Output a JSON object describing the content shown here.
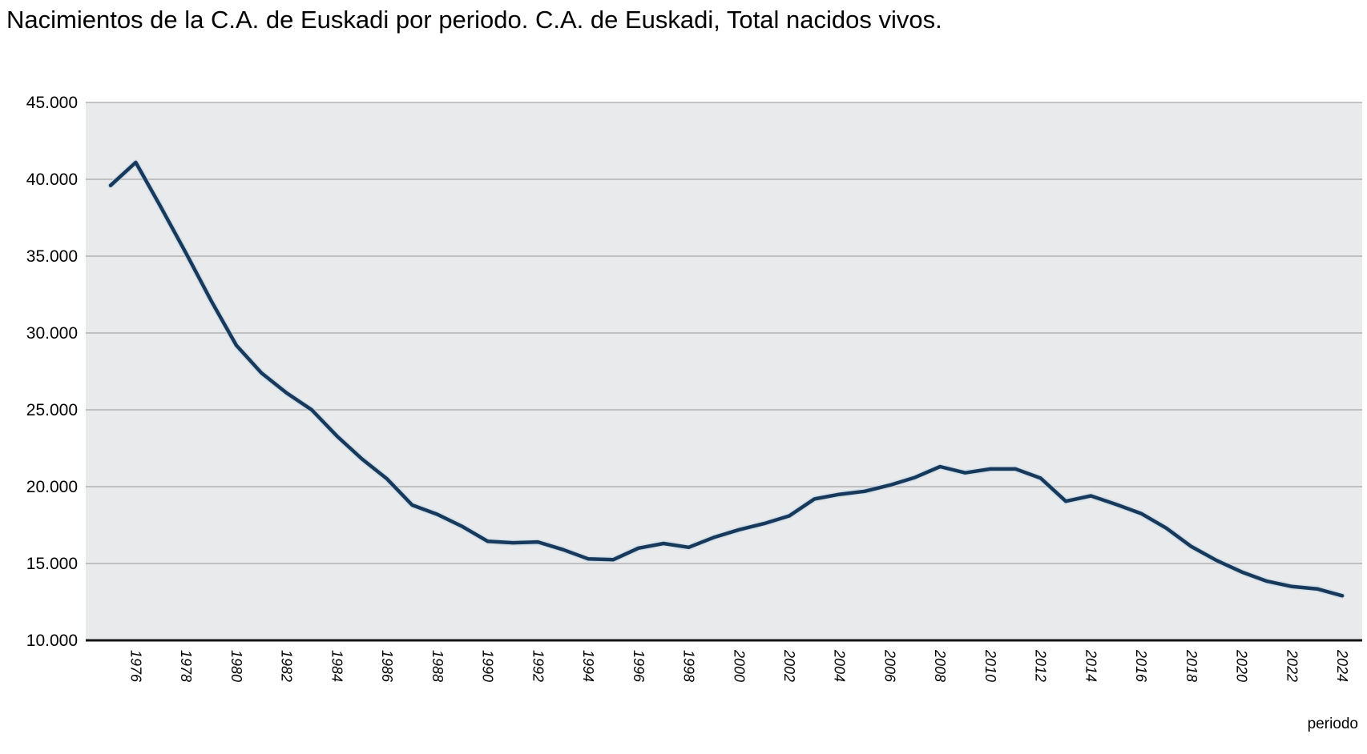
{
  "title": "Nacimientos de la C.A. de Euskadi por periodo. C.A. de Euskadi, Total nacidos vivos.",
  "chart_data": {
    "type": "line",
    "title": "Nacimientos de la C.A. de Euskadi por periodo. C.A. de Euskadi, Total nacidos vivos.",
    "series": [
      {
        "name": "Total nacidos vivos",
        "x": [
          1975,
          1976,
          1977,
          1978,
          1979,
          1980,
          1981,
          1982,
          1983,
          1984,
          1985,
          1986,
          1987,
          1988,
          1989,
          1990,
          1991,
          1992,
          1993,
          1994,
          1995,
          1996,
          1997,
          1998,
          1999,
          2000,
          2001,
          2002,
          2003,
          2004,
          2005,
          2006,
          2007,
          2008,
          2009,
          2010,
          2011,
          2012,
          2013,
          2014,
          2015,
          2016,
          2017,
          2018,
          2019,
          2020,
          2021,
          2022,
          2023,
          2024
        ],
        "values": [
          39600,
          41100,
          38200,
          35200,
          32100,
          29200,
          27400,
          26100,
          25000,
          23300,
          21800,
          20500,
          18800,
          18200,
          17400,
          16450,
          16350,
          16400,
          15900,
          15300,
          15250,
          16000,
          16300,
          16050,
          16700,
          17200,
          17600,
          18100,
          19200,
          19500,
          19700,
          20100,
          20600,
          21300,
          20900,
          21150,
          21150,
          20550,
          19050,
          19400,
          18850,
          18250,
          17300,
          16100,
          15200,
          14450,
          13850,
          13500,
          13350,
          12900
        ]
      }
    ],
    "xlabel": "periodo",
    "ylabel": "",
    "ylim": [
      10000,
      45000
    ],
    "y_ticks": [
      45000,
      40000,
      35000,
      30000,
      25000,
      20000,
      15000,
      10000
    ],
    "y_tick_labels": [
      "45.000",
      "40.000",
      "35.000",
      "30.000",
      "25.000",
      "20.000",
      "15.000",
      "10.000"
    ],
    "x_tick_years": [
      1976,
      1978,
      1980,
      1982,
      1984,
      1986,
      1988,
      1990,
      1992,
      1994,
      1996,
      1998,
      2000,
      2002,
      2004,
      2006,
      2008,
      2010,
      2012,
      2014,
      2016,
      2018,
      2020,
      2022,
      2024
    ],
    "x_tick_labels": [
      "1976",
      "1978",
      "1980",
      "1982",
      "1984",
      "1986",
      "1988",
      "1990",
      "1992",
      "1994",
      "1996",
      "1998",
      "2000",
      "2002",
      "2004",
      "2006",
      "2008",
      "2010",
      "2012",
      "2014",
      "2016",
      "2018",
      "2020",
      "2022",
      "2024"
    ],
    "grid": "horizontal",
    "legend_position": "none",
    "colors": {
      "line": "#17395c",
      "line_halo": "#c3d5e6",
      "plot_background": "#e9eaeb",
      "gridline": "#a8a8a8",
      "axis": "#141414",
      "text": "#000000"
    }
  }
}
